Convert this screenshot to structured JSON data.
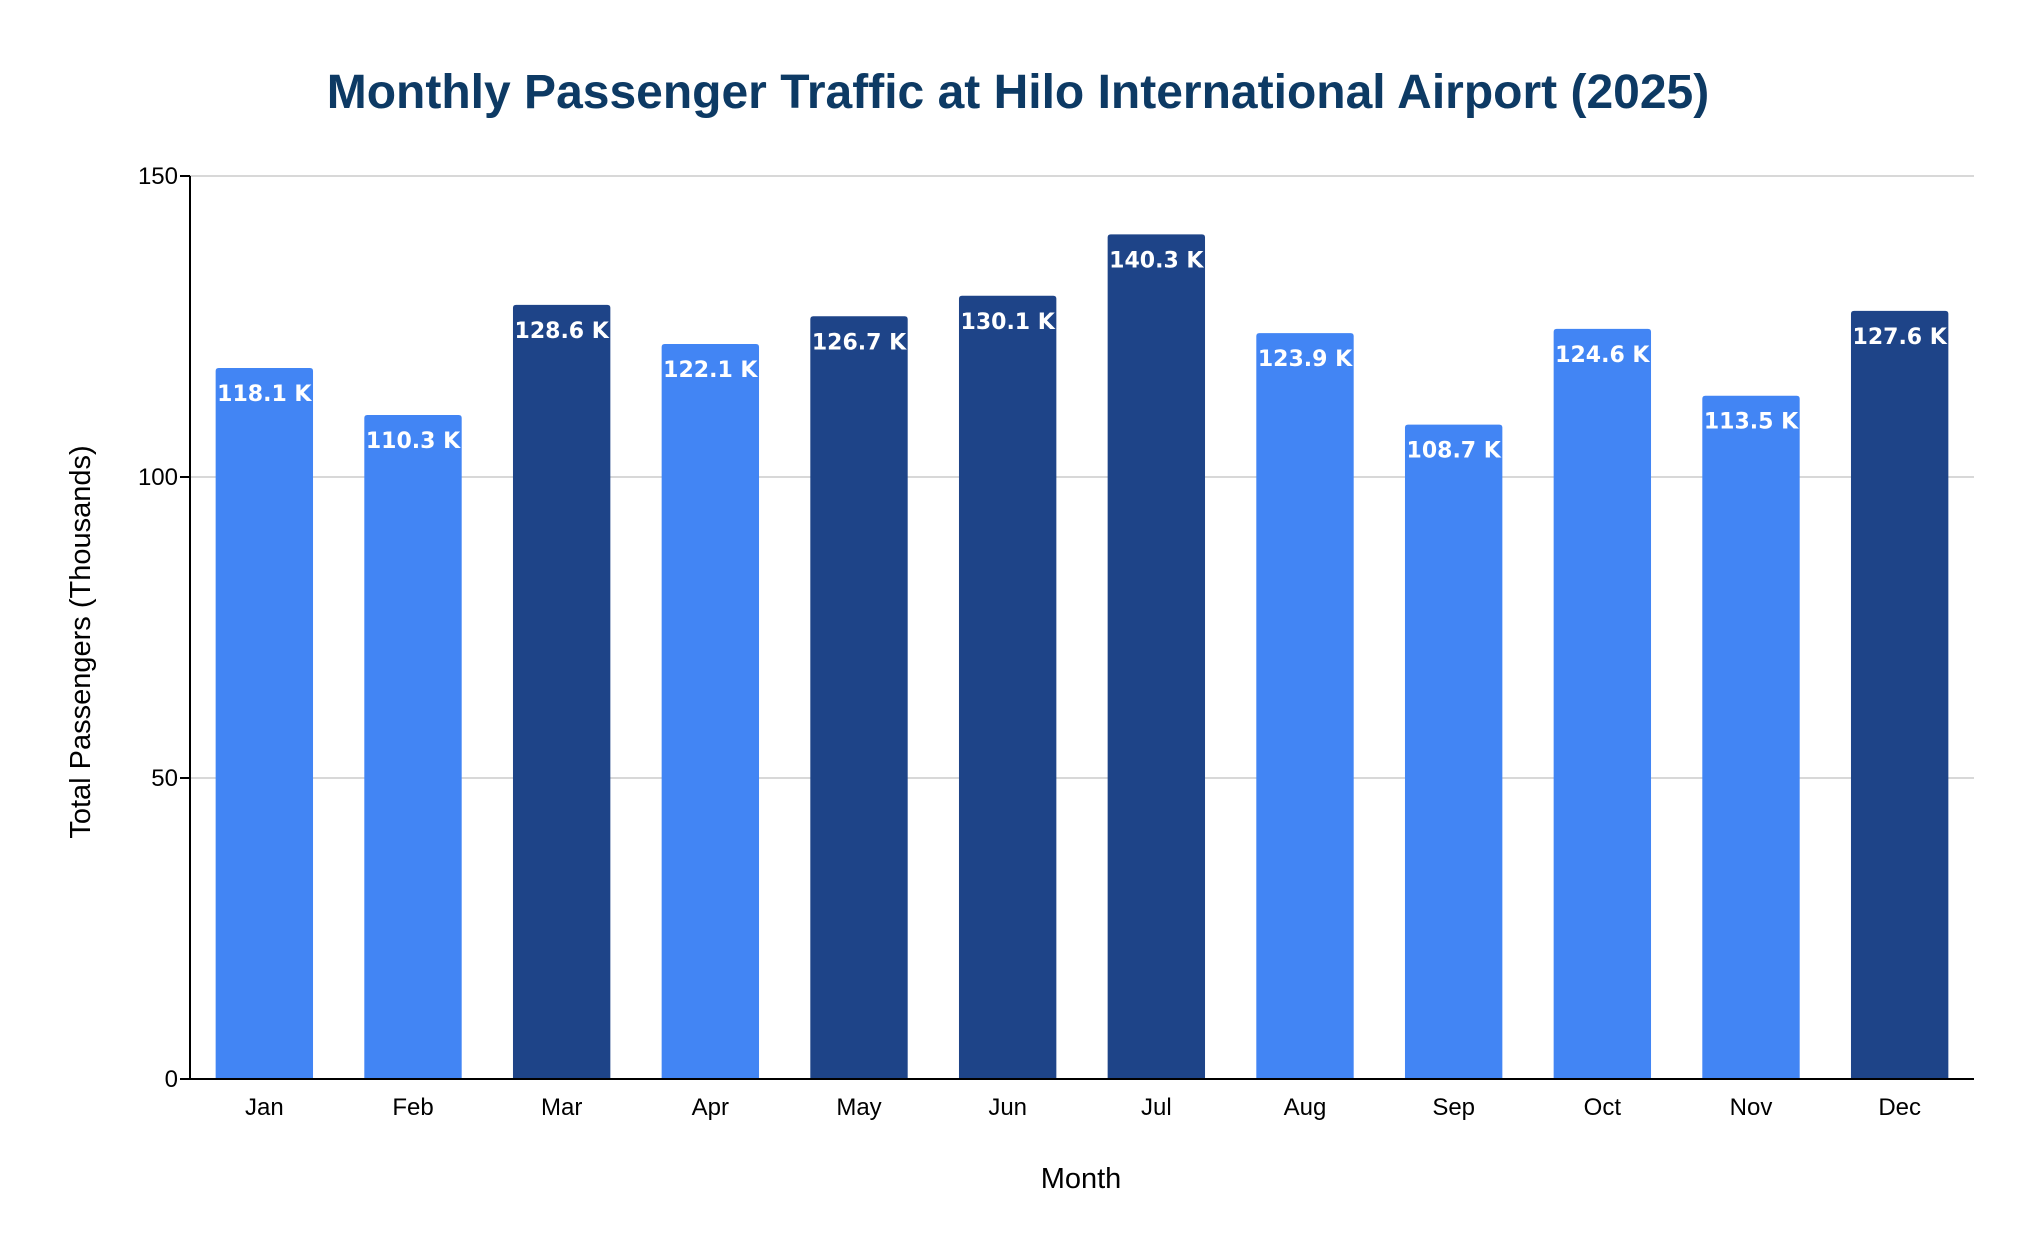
{
  "chart_data": {
    "type": "bar",
    "title": "Monthly Passenger Traffic at Hilo International Airport (2025)",
    "xlabel": "Month",
    "ylabel": "Total Passengers (Thousands)",
    "categories": [
      "Jan",
      "Feb",
      "Mar",
      "Apr",
      "May",
      "Jun",
      "Jul",
      "Aug",
      "Sep",
      "Oct",
      "Nov",
      "Dec"
    ],
    "values": [
      118.1,
      110.3,
      128.6,
      122.1,
      126.7,
      130.1,
      140.3,
      123.9,
      108.7,
      124.6,
      113.5,
      127.6
    ],
    "data_labels": [
      "118.1 K",
      "110.3 K",
      "128.6 K",
      "122.1 K",
      "126.7 K",
      "130.1 K",
      "140.3 K",
      "123.9 K",
      "108.7 K",
      "124.6 K",
      "113.5 K",
      "127.6 K"
    ],
    "highlighted": [
      false,
      false,
      true,
      false,
      true,
      true,
      true,
      false,
      false,
      false,
      false,
      true
    ],
    "ylim": [
      0,
      150
    ],
    "yticks": [
      0,
      50,
      100,
      150
    ],
    "grid": true,
    "legend": "none",
    "colors": {
      "bar": "#4285f4",
      "bar_highlight": "#1e4488",
      "title": "#0d3a64",
      "gridline": "#cccccc",
      "axis": "#000000",
      "data_label": "#ffffff"
    }
  }
}
